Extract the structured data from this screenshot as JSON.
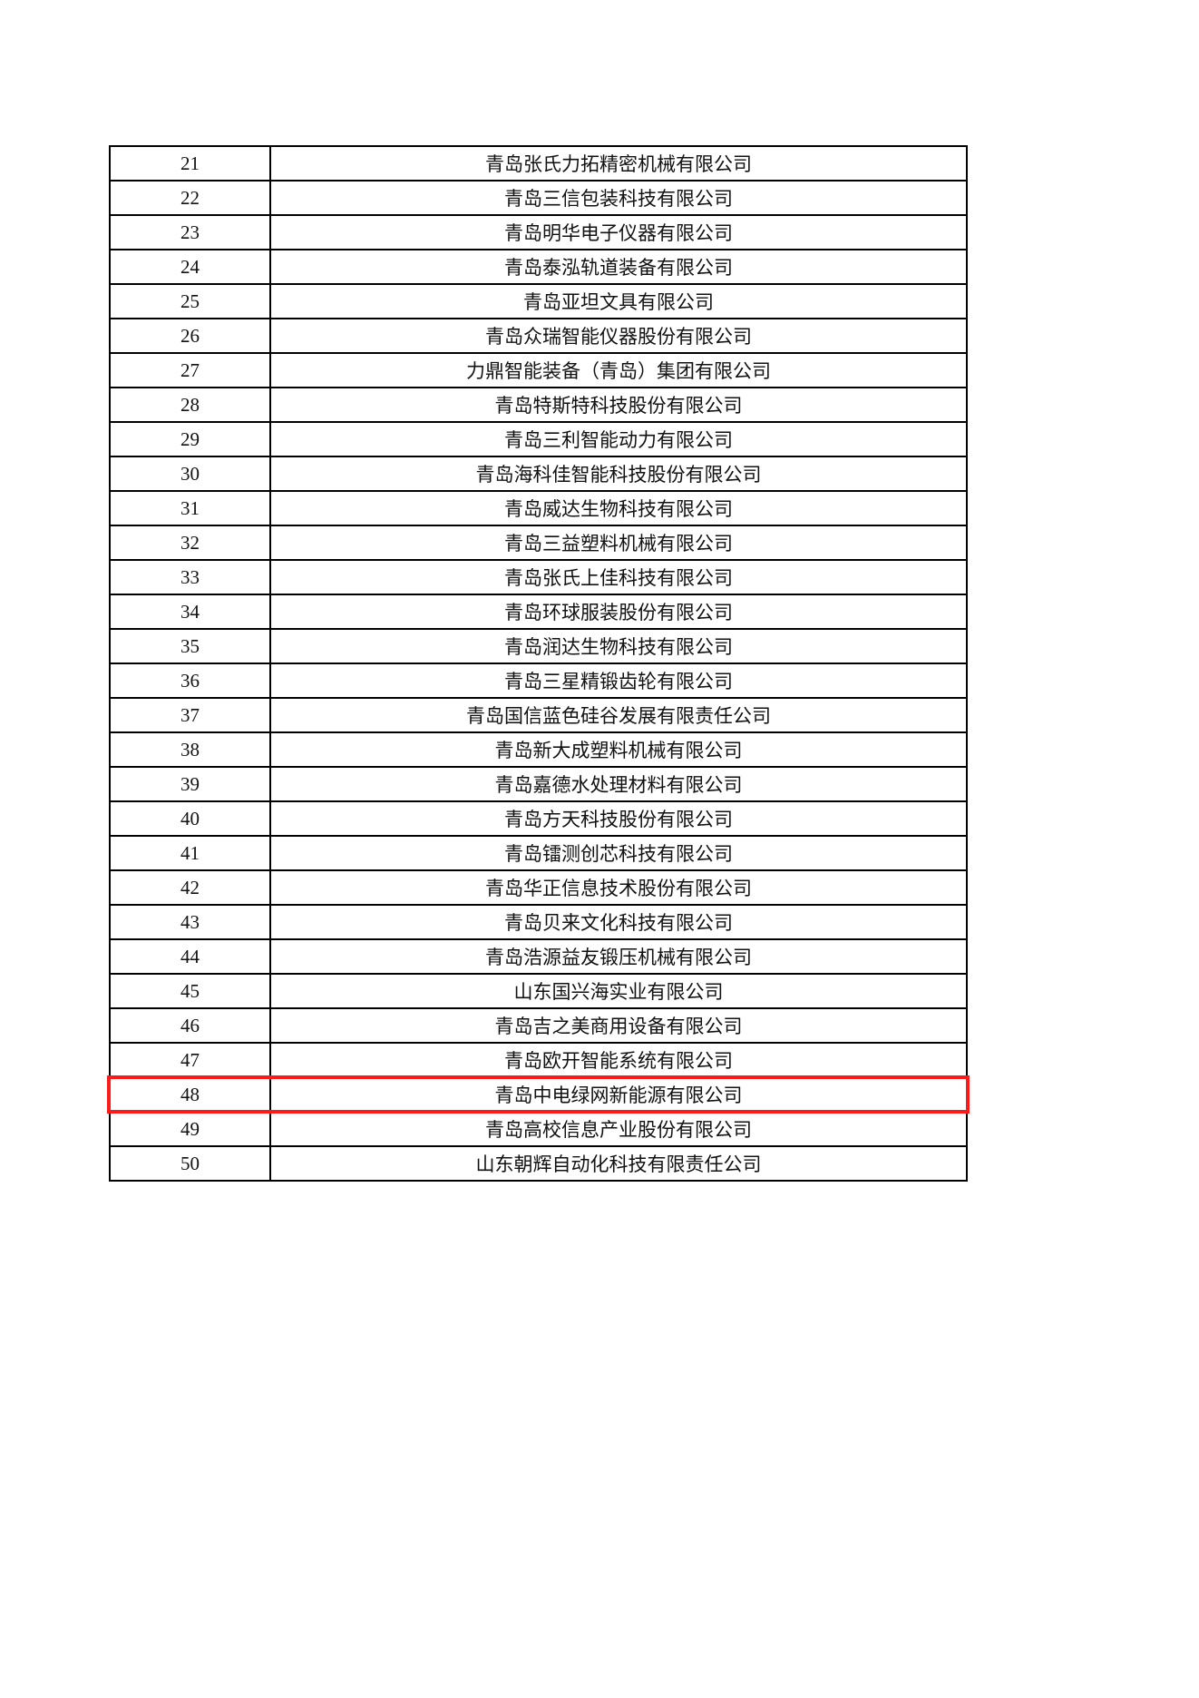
{
  "table": {
    "rows": [
      {
        "no": "21",
        "name": "青岛张氏力拓精密机械有限公司"
      },
      {
        "no": "22",
        "name": "青岛三信包装科技有限公司"
      },
      {
        "no": "23",
        "name": "青岛明华电子仪器有限公司"
      },
      {
        "no": "24",
        "name": "青岛泰泓轨道装备有限公司"
      },
      {
        "no": "25",
        "name": "青岛亚坦文具有限公司"
      },
      {
        "no": "26",
        "name": "青岛众瑞智能仪器股份有限公司"
      },
      {
        "no": "27",
        "name": "力鼎智能装备（青岛）集团有限公司"
      },
      {
        "no": "28",
        "name": "青岛特斯特科技股份有限公司"
      },
      {
        "no": "29",
        "name": "青岛三利智能动力有限公司"
      },
      {
        "no": "30",
        "name": "青岛海科佳智能科技股份有限公司"
      },
      {
        "no": "31",
        "name": "青岛威达生物科技有限公司"
      },
      {
        "no": "32",
        "name": "青岛三益塑料机械有限公司"
      },
      {
        "no": "33",
        "name": "青岛张氏上佳科技有限公司"
      },
      {
        "no": "34",
        "name": "青岛环球服装股份有限公司"
      },
      {
        "no": "35",
        "name": "青岛润达生物科技有限公司"
      },
      {
        "no": "36",
        "name": "青岛三星精锻齿轮有限公司"
      },
      {
        "no": "37",
        "name": "青岛国信蓝色硅谷发展有限责任公司"
      },
      {
        "no": "38",
        "name": "青岛新大成塑料机械有限公司"
      },
      {
        "no": "39",
        "name": "青岛嘉德水处理材料有限公司"
      },
      {
        "no": "40",
        "name": "青岛方天科技股份有限公司"
      },
      {
        "no": "41",
        "name": "青岛镭测创芯科技有限公司"
      },
      {
        "no": "42",
        "name": "青岛华正信息技术股份有限公司"
      },
      {
        "no": "43",
        "name": "青岛贝来文化科技有限公司"
      },
      {
        "no": "44",
        "name": "青岛浩源益友锻压机械有限公司"
      },
      {
        "no": "45",
        "name": "山东国兴海实业有限公司"
      },
      {
        "no": "46",
        "name": "青岛吉之美商用设备有限公司"
      },
      {
        "no": "47",
        "name": "青岛欧开智能系统有限公司"
      },
      {
        "no": "48",
        "name": "青岛中电绿网新能源有限公司"
      },
      {
        "no": "49",
        "name": "青岛高校信息产业股份有限公司"
      },
      {
        "no": "50",
        "name": "山东朝辉自动化科技有限责任公司"
      }
    ],
    "highlighted_no": "48",
    "highlight_color": "#ff1a1a"
  }
}
